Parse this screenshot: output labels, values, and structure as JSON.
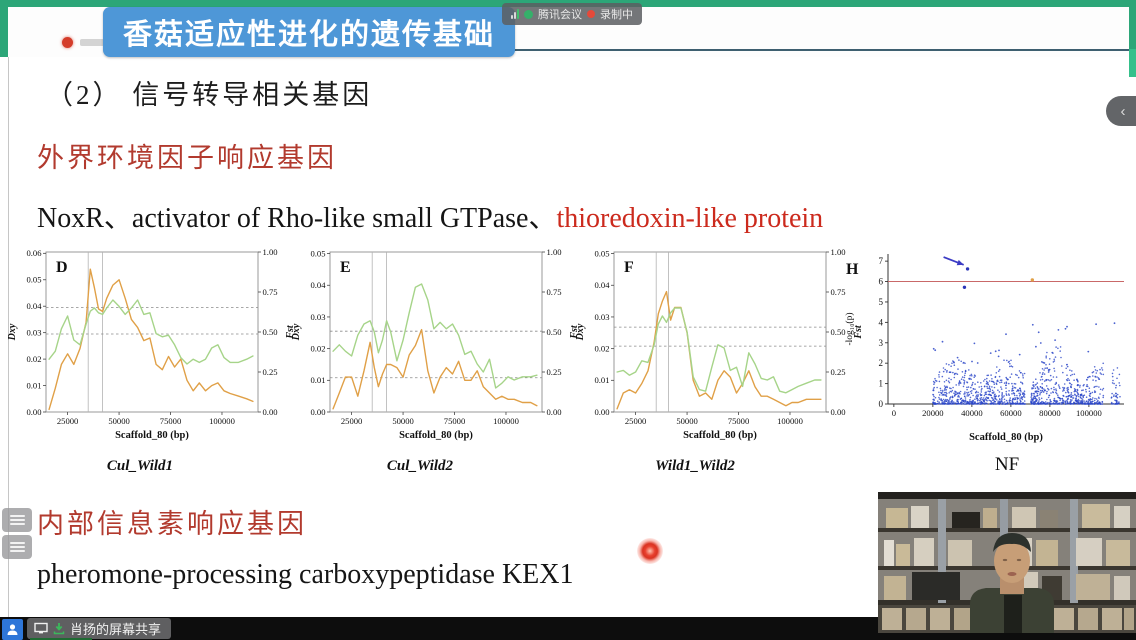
{
  "meeting": {
    "app_pill": {
      "app_name": "腾讯会议",
      "recording_label": "录制中"
    },
    "share_bar": {
      "label": "肖扬的屏幕共享"
    },
    "collapse_chevron": "‹"
  },
  "slide": {
    "banner_title": "香菇适应性进化的遗传基础",
    "heading": "（2） 信号转导相关基因",
    "section1_title": "外界环境因子响应基因",
    "gene_line": {
      "black_part": "NoxR、activator of Rho-like small GTPase、",
      "red_part": "thioredoxin-like protein"
    },
    "section2_title": "内部信息素响应基因",
    "gene_line2": "pheromone-processing carboxypeptidase KEX1"
  },
  "colors": {
    "banner_teal": "#2ca678",
    "title_blue": "#4e97d7",
    "red_text": "#b23a2e",
    "line_orange": "#e0a047",
    "line_green": "#a6d489",
    "scatter_blue": "#2b46c8",
    "threshold_red": "#c96868"
  },
  "chart_data": [
    {
      "type": "line",
      "panel": "D",
      "caption": "Cul_Wild1",
      "xlabel": "Scaffold_80 (bp)",
      "ylabel_left": "Dxy",
      "ylabel_right": "Fst",
      "x_range": [
        14500,
        117500
      ],
      "x_ticks": [
        25000,
        50000,
        75000,
        100000
      ],
      "y_left_max": 0.0605,
      "y_left_ticks": [
        0,
        0.01,
        0.02,
        0.03,
        0.04,
        0.05,
        0.06
      ],
      "y_right_max": 1.0,
      "y_right_ticks": [
        0,
        0.25,
        0.5,
        0.75,
        1.0
      ],
      "vlines": [
        35000,
        42000
      ],
      "hlines_left": [
        0.0395,
        0.0295
      ],
      "x": [
        16000,
        19000,
        22000,
        25000,
        28000,
        31000,
        34000,
        36000,
        38000,
        40000,
        42000,
        44000,
        47000,
        50000,
        53000,
        56000,
        59000,
        62000,
        65000,
        68000,
        71000,
        74000,
        77000,
        80000,
        83000,
        86000,
        89000,
        92000,
        95000,
        98000,
        101000,
        104000,
        108000,
        112000,
        115000
      ],
      "series": [
        {
          "name": "Dxy",
          "axis": "left",
          "color": "#e0a047",
          "values": [
            0.001,
            0.009,
            0.018,
            0.022,
            0.018,
            0.024,
            0.034,
            0.054,
            0.047,
            0.039,
            0.038,
            0.043,
            0.048,
            0.05,
            0.043,
            0.035,
            0.032,
            0.027,
            0.028,
            0.018,
            0.016,
            0.021,
            0.017,
            0.02,
            0.012,
            0.008,
            0.011,
            0.008,
            0.01,
            0.011,
            0.008,
            0.007,
            0.006,
            0.005,
            0.004
          ]
        },
        {
          "name": "Fst",
          "axis": "right",
          "color": "#a6d489",
          "values": [
            0.33,
            0.38,
            0.52,
            0.6,
            0.45,
            0.42,
            0.55,
            0.63,
            0.65,
            0.62,
            0.61,
            0.65,
            0.7,
            0.66,
            0.61,
            0.65,
            0.7,
            0.61,
            0.62,
            0.49,
            0.47,
            0.48,
            0.42,
            0.34,
            0.3,
            0.33,
            0.31,
            0.33,
            0.4,
            0.42,
            0.34,
            0.31,
            0.31,
            0.33,
            0.35
          ]
        }
      ]
    },
    {
      "type": "line",
      "panel": "E",
      "caption": "Cul_Wild2",
      "xlabel": "Scaffold_80 (bp)",
      "ylabel_left": "Dxy",
      "ylabel_right": "Fst",
      "x_range": [
        14500,
        117500
      ],
      "x_ticks": [
        25000,
        50000,
        75000,
        100000
      ],
      "y_left_max": 0.0505,
      "y_left_ticks": [
        0,
        0.01,
        0.02,
        0.03,
        0.04,
        0.05
      ],
      "y_right_max": 1.0,
      "y_right_ticks": [
        0,
        0.25,
        0.5,
        0.75,
        1.0
      ],
      "vlines": [
        35000,
        42000
      ],
      "hlines_left": [
        0.0255,
        0.0108
      ],
      "x": [
        16000,
        19000,
        22000,
        25000,
        28000,
        31000,
        34000,
        36000,
        38000,
        40000,
        42000,
        44000,
        47000,
        50000,
        53000,
        56000,
        59000,
        62000,
        65000,
        68000,
        71000,
        74000,
        77000,
        80000,
        83000,
        86000,
        89000,
        92000,
        95000,
        98000,
        101000,
        104000,
        108000,
        112000,
        115000
      ],
      "series": [
        {
          "name": "Dxy",
          "axis": "left",
          "color": "#e0a047",
          "values": [
            0.001,
            0.006,
            0.011,
            0.011,
            0.005,
            0.013,
            0.022,
            0.014,
            0.008,
            0.012,
            0.015,
            0.015,
            0.014,
            0.011,
            0.018,
            0.021,
            0.026,
            0.013,
            0.006,
            0.011,
            0.014,
            0.012,
            0.016,
            0.01,
            0.01,
            0.013,
            0.008,
            0.006,
            0.004,
            0.005,
            0.004,
            0.004,
            0.003,
            0.003,
            0.002
          ]
        },
        {
          "name": "Fst",
          "axis": "right",
          "color": "#a6d489",
          "values": [
            0.38,
            0.42,
            0.38,
            0.35,
            0.48,
            0.55,
            0.57,
            0.5,
            0.37,
            0.45,
            0.57,
            0.5,
            0.32,
            0.45,
            0.62,
            0.78,
            0.8,
            0.7,
            0.52,
            0.56,
            0.52,
            0.55,
            0.48,
            0.36,
            0.38,
            0.3,
            0.25,
            0.33,
            0.15,
            0.18,
            0.22,
            0.2,
            0.22,
            0.22,
            0.23
          ]
        }
      ]
    },
    {
      "type": "line",
      "panel": "F",
      "caption": "Wild1_Wild2",
      "xlabel": "Scaffold_80 (bp)",
      "ylabel_left": "Dxy",
      "ylabel_right": "Fst",
      "x_range": [
        14500,
        117500
      ],
      "x_ticks": [
        25000,
        50000,
        75000,
        100000
      ],
      "y_left_max": 0.0505,
      "y_left_ticks": [
        0,
        0.01,
        0.02,
        0.03,
        0.04,
        0.05
      ],
      "y_right_max": 1.0,
      "y_right_ticks": [
        0,
        0.25,
        0.5,
        0.75,
        1.0
      ],
      "vlines": [
        35000,
        41000
      ],
      "hlines_left": [
        0.0268,
        0.0208
      ],
      "x": [
        16000,
        19000,
        22000,
        25000,
        28000,
        31000,
        34000,
        36000,
        38000,
        40000,
        42000,
        44000,
        47000,
        50000,
        53000,
        56000,
        59000,
        62000,
        65000,
        68000,
        71000,
        74000,
        77000,
        80000,
        83000,
        86000,
        89000,
        92000,
        95000,
        98000,
        101000,
        104000,
        108000,
        112000,
        115000
      ],
      "series": [
        {
          "name": "Dxy",
          "axis": "left",
          "color": "#e0a047",
          "values": [
            0.001,
            0.006,
            0.007,
            0.006,
            0.009,
            0.013,
            0.022,
            0.031,
            0.035,
            0.038,
            0.029,
            0.033,
            0.033,
            0.025,
            0.01,
            0.005,
            0.006,
            0.004,
            0.01,
            0.013,
            0.011,
            0.006,
            0.009,
            0.013,
            0.008,
            0.005,
            0.005,
            0.004,
            0.003,
            0.002,
            0.003,
            0.003,
            0.004,
            0.004,
            0.004
          ]
        },
        {
          "name": "Fst",
          "axis": "right",
          "color": "#a6d489",
          "values": [
            0.25,
            0.26,
            0.23,
            0.25,
            0.32,
            0.31,
            0.42,
            0.55,
            0.6,
            0.56,
            0.62,
            0.65,
            0.65,
            0.5,
            0.22,
            0.14,
            0.13,
            0.28,
            0.42,
            0.4,
            0.26,
            0.28,
            0.16,
            0.37,
            0.3,
            0.21,
            0.2,
            0.22,
            0.13,
            0.12,
            0.14,
            0.16,
            0.18,
            0.2,
            0.2
          ]
        }
      ]
    },
    {
      "type": "scatter",
      "panel": "H",
      "caption": "NF",
      "xlabel": "Scaffold_80 (bp)",
      "ylabel": "-log₁₀(p)",
      "x_range": [
        -3000,
        118000
      ],
      "x_ticks": [
        0,
        20000,
        40000,
        60000,
        80000,
        100000
      ],
      "y_range": [
        0,
        7.35
      ],
      "y_ticks": [
        0,
        1,
        2,
        3,
        4,
        5,
        6,
        7
      ],
      "threshold_line": {
        "y": 6,
        "color": "#c96868"
      },
      "highlight_points": [
        {
          "x": 37800,
          "y": 6.62,
          "color": "#2a35b8"
        },
        {
          "x": 36200,
          "y": 5.72,
          "color": "#2a35b8"
        },
        {
          "x": 71000,
          "y": 6.08,
          "color": "#e0a047"
        }
      ],
      "arrow": {
        "from": [
          25500,
          7.2
        ],
        "to": [
          35800,
          6.82
        ],
        "color": "#3b3bc4"
      },
      "cloud": {
        "count": 1400,
        "seed": 7,
        "x_min": 20000,
        "x_max": 116000,
        "y_typical_max": 2.2,
        "outlier_count": 34,
        "outlier_y_max": 4.1,
        "gaps": [
          [
            67500,
            70200
          ],
          [
            107500,
            111500
          ]
        ],
        "color": "#2b46c8"
      }
    }
  ]
}
